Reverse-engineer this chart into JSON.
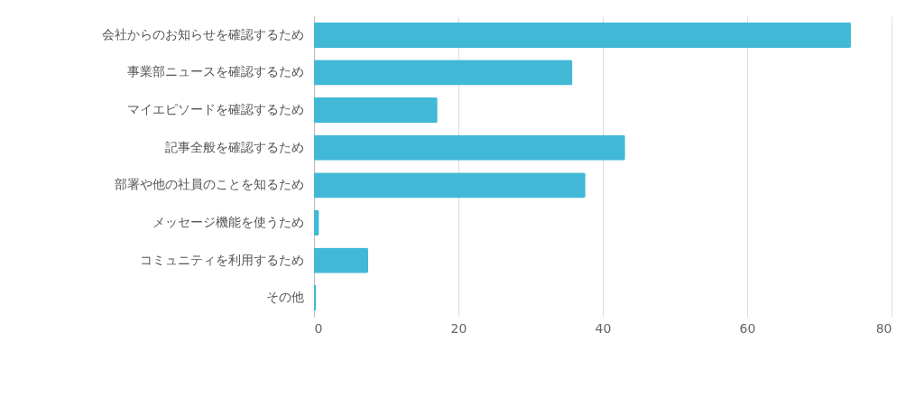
{
  "chart_data": {
    "type": "bar",
    "orientation": "horizontal",
    "categories": [
      "会社からのお知らせを確認するため",
      "事業部ニュースを確認するため",
      "マイエピソードを確認するため",
      "記事全般を確認するため",
      "部署や他の社員のことを知るため",
      "メッセージ機能を使うため",
      "コミュニティを利用するため",
      "その他"
    ],
    "values": [
      74.4,
      35.8,
      17.1,
      43.1,
      37.6,
      0.7,
      7.5,
      0.3
    ],
    "color": "#42b8d7",
    "xlim": [
      0,
      80
    ],
    "xticks": [
      0,
      20,
      40,
      60,
      80
    ],
    "grid": "x"
  }
}
